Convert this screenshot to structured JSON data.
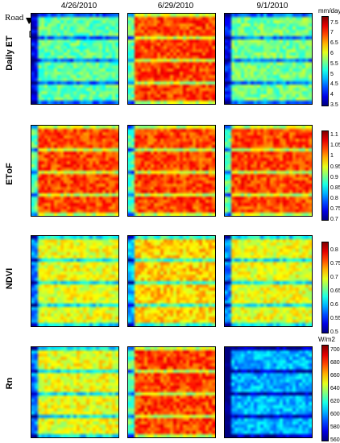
{
  "chart_data": {
    "type": "heatmap",
    "columns": [
      "4/26/2010",
      "6/29/2010",
      "9/1/2010"
    ],
    "rows": [
      {
        "label": "Daily ET",
        "unit": "mm/day",
        "range": [
          3.5,
          7.8
        ],
        "ticks": [
          "7.5",
          "7",
          "6.5",
          "6",
          "5.5",
          "5",
          "4.5",
          "4",
          "3.5"
        ],
        "panel_mean": [
          5.5,
          7.0,
          5.6
        ]
      },
      {
        "label": "ETоF",
        "unit": "",
        "range": [
          0.7,
          1.12
        ],
        "ticks": [
          "1.1",
          "1.05",
          "1",
          "0.95",
          "0.9",
          "0.85",
          "0.8",
          "0.75",
          "0.7"
        ],
        "panel_mean": [
          1.04,
          1.04,
          1.04
        ]
      },
      {
        "label": "NDVI",
        "unit": "",
        "range": [
          0.5,
          0.83
        ],
        "ticks": [
          "0.8",
          "0.75",
          "0.7",
          "0.65",
          "0.6",
          "0.55",
          "0.5"
        ],
        "panel_mean": [
          0.7,
          0.72,
          0.7
        ]
      },
      {
        "label": "Rn",
        "unit": "W/m2",
        "range": [
          560,
          708
        ],
        "ticks": [
          "700",
          "680",
          "660",
          "640",
          "620",
          "600",
          "580",
          "560"
        ],
        "panel_mean": [
          650,
          680,
          605
        ]
      }
    ],
    "annotation": "Road",
    "colormap": "jet"
  }
}
